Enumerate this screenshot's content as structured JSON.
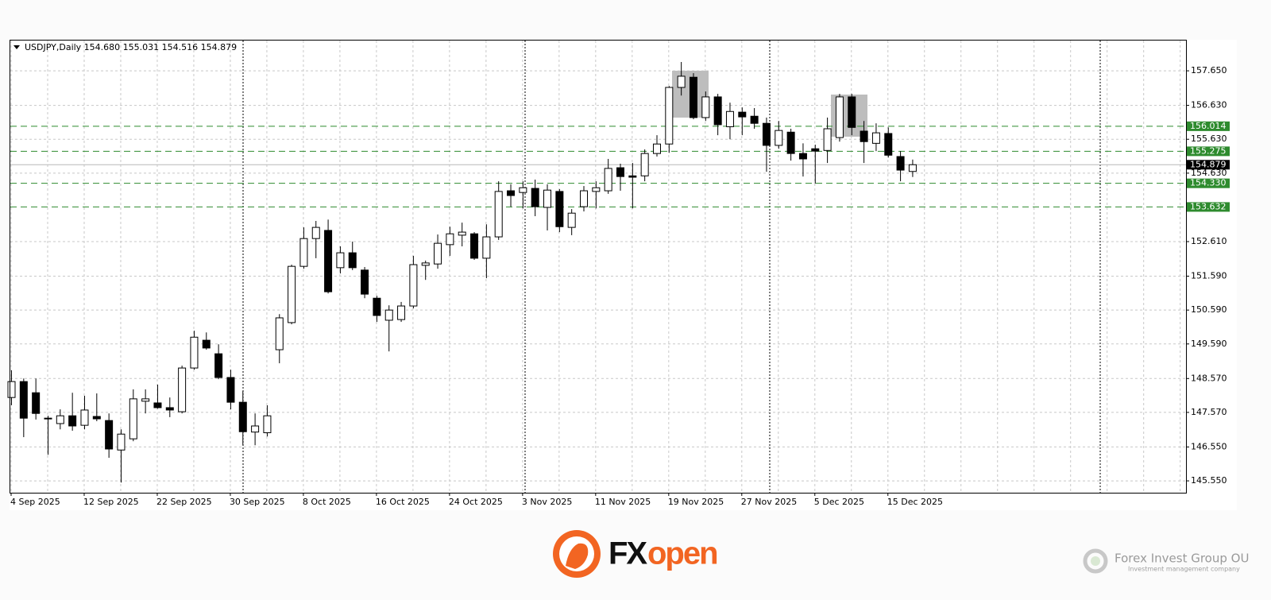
{
  "chart_data": {
    "type": "candlestick",
    "title": "USDJPY,Daily 154.680 155.031 154.516 154.879",
    "categories": [
      "4 Sep 2025",
      null,
      null,
      null,
      null,
      null,
      "12 Sep 2025",
      null,
      null,
      null,
      null,
      null,
      "22 Sep 2025",
      null,
      null,
      null,
      null,
      null,
      "30 Sep 2025",
      null,
      null,
      null,
      null,
      null,
      "8 Oct 2025",
      null,
      null,
      null,
      null,
      null,
      "16 Oct 2025",
      null,
      null,
      null,
      null,
      null,
      "24 Oct 2025",
      null,
      null,
      null,
      null,
      null,
      "3 Nov 2025",
      null,
      null,
      null,
      null,
      null,
      "11 Nov 2025",
      null,
      null,
      null,
      null,
      null,
      "19 Nov 2025",
      null,
      null,
      null,
      null,
      null,
      "27 Nov 2025",
      null,
      null,
      null,
      null,
      null,
      "5 Dec 2025",
      null,
      null,
      null,
      null,
      null,
      "15 Dec 2025",
      null,
      null
    ],
    "open": [
      148.01,
      148.48,
      148.15,
      147.4,
      147.24,
      147.47,
      147.19,
      147.45,
      147.33,
      146.46,
      146.79,
      147.9,
      147.85,
      147.71,
      147.59,
      148.88,
      149.7,
      149.3,
      148.6,
      147.87,
      146.99,
      146.97,
      149.42,
      150.22,
      151.88,
      152.7,
      152.94,
      151.84,
      152.28,
      151.77,
      150.94,
      150.29,
      150.31,
      150.71,
      151.91,
      151.95,
      152.52,
      152.8,
      152.84,
      152.12,
      152.75,
      154.11,
      154.06,
      154.18,
      153.62,
      154.09,
      153.03,
      153.64,
      154.09,
      154.11,
      154.79,
      154.55,
      154.55,
      155.21,
      155.49,
      157.16,
      157.46,
      156.27,
      156.88,
      156.0,
      156.43,
      156.31,
      156.1,
      155.45,
      155.84,
      155.21,
      155.35,
      155.3,
      155.68,
      156.88,
      155.87,
      155.51,
      155.8,
      155.12,
      154.68
    ],
    "high": [
      148.81,
      148.57,
      148.57,
      147.47,
      147.66,
      148.15,
      148.06,
      148.13,
      147.54,
      147.07,
      148.25,
      148.25,
      148.39,
      148.01,
      148.95,
      149.98,
      149.93,
      149.58,
      148.83,
      148.2,
      147.54,
      147.78,
      150.47,
      151.93,
      153.03,
      153.22,
      153.26,
      152.47,
      152.61,
      151.86,
      151.01,
      150.73,
      150.83,
      152.19,
      152.05,
      152.82,
      153.05,
      153.17,
      152.89,
      153.12,
      154.39,
      154.3,
      154.39,
      154.44,
      154.3,
      154.16,
      153.57,
      154.25,
      154.39,
      155.05,
      154.91,
      154.93,
      155.33,
      155.75,
      157.2,
      157.91,
      157.58,
      157.04,
      156.97,
      156.71,
      156.57,
      156.55,
      156.27,
      156.17,
      155.94,
      155.51,
      155.47,
      156.27,
      156.97,
      156.97,
      156.17,
      156.1,
      155.98,
      155.28,
      155.031
    ],
    "low": [
      147.78,
      146.84,
      147.36,
      146.32,
      147.07,
      147.03,
      147.07,
      147.31,
      146.23,
      145.5,
      146.72,
      147.54,
      147.68,
      147.43,
      147.54,
      148.83,
      149.42,
      148.55,
      147.66,
      146.6,
      146.6,
      146.86,
      149.02,
      150.17,
      151.81,
      152.12,
      151.08,
      151.67,
      151.77,
      150.94,
      150.24,
      149.37,
      150.24,
      150.64,
      151.48,
      151.81,
      152.19,
      152.47,
      152.07,
      151.53,
      152.66,
      153.64,
      153.59,
      153.36,
      152.94,
      152.89,
      152.8,
      153.5,
      153.59,
      154.02,
      154.11,
      153.59,
      154.39,
      155.12,
      155.23,
      156.92,
      156.22,
      156.17,
      155.75,
      155.63,
      155.75,
      155.94,
      154.67,
      155.35,
      155.0,
      154.53,
      154.32,
      154.93,
      155.56,
      155.75,
      154.93,
      155.28,
      155.09,
      154.39,
      154.516
    ],
    "close": [
      148.48,
      147.4,
      147.54,
      147.38,
      147.47,
      147.17,
      147.64,
      147.38,
      146.49,
      146.93,
      147.97,
      147.97,
      147.71,
      147.64,
      148.88,
      149.79,
      149.47,
      148.6,
      147.87,
      147.0,
      147.17,
      147.47,
      150.36,
      151.88,
      152.7,
      153.03,
      151.13,
      152.28,
      151.84,
      151.06,
      150.43,
      150.59,
      150.71,
      151.93,
      151.98,
      152.56,
      152.84,
      152.89,
      152.12,
      152.75,
      154.09,
      153.97,
      154.2,
      153.64,
      154.13,
      153.05,
      153.45,
      154.11,
      154.2,
      154.77,
      154.53,
      154.51,
      155.21,
      155.49,
      157.16,
      157.49,
      156.27,
      156.88,
      156.06,
      156.45,
      156.29,
      156.1,
      155.45,
      155.89,
      155.21,
      155.05,
      155.28,
      155.94,
      156.88,
      155.98,
      155.56,
      155.82,
      155.16,
      154.72,
      154.879
    ],
    "up_color": "#ffffff",
    "down_color": "#000000",
    "ylim": [
      145.2,
      158.52
    ],
    "yticks": [
      {
        "value": 157.65,
        "label": "157.650"
      },
      {
        "value": 156.63,
        "label": "156.630"
      },
      {
        "value": 155.63,
        "label": "155.630"
      },
      {
        "value": 154.63,
        "label": "154.630"
      },
      {
        "value": 152.61,
        "label": "152.610"
      },
      {
        "value": 151.59,
        "label": "151.590"
      },
      {
        "value": 150.59,
        "label": "150.590"
      },
      {
        "value": 149.59,
        "label": "149.590"
      },
      {
        "value": 148.57,
        "label": "148.570"
      },
      {
        "value": 147.57,
        "label": "147.570"
      },
      {
        "value": 146.55,
        "label": "146.550"
      },
      {
        "value": 145.55,
        "label": "145.550"
      }
    ],
    "grid": true,
    "levels": {
      "values": [
        156.014,
        155.275,
        154.33,
        153.632
      ],
      "value_labels": [
        "156.014",
        "155.275",
        "154.330",
        "153.632"
      ],
      "color": "#2e8b2e"
    },
    "last_price": 154.879,
    "last_price_color": "#000000"
  },
  "footer": {
    "logo_fx": "FX",
    "logo_open": "open",
    "company": "Forex Invest Group OU",
    "company_tagline": "Investment management company"
  }
}
